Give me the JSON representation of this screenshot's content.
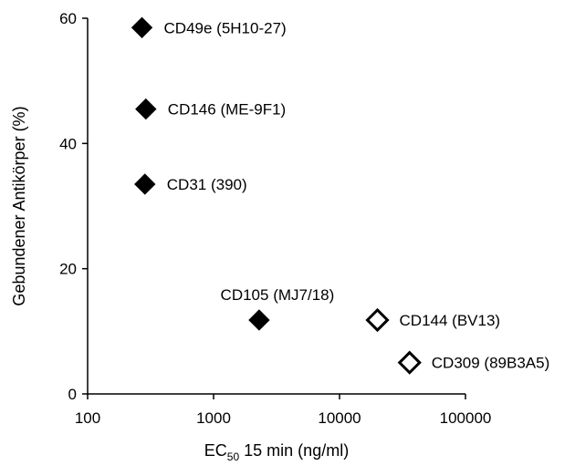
{
  "chart_data": {
    "type": "scatter",
    "title": "",
    "xlabel": {
      "prefix": "EC",
      "sub": "50",
      "suffix": " 15 min (ng/ml)"
    },
    "ylabel": "Gebundener Antikörper (%)",
    "x_scale": "log",
    "xlim": [
      100,
      100000
    ],
    "ylim": [
      0,
      60
    ],
    "x_ticks": [
      100,
      1000,
      10000,
      100000
    ],
    "x_tick_labels": [
      "100",
      "1000",
      "10000",
      "100000"
    ],
    "y_ticks": [
      0,
      20,
      40,
      60
    ],
    "y_tick_labels": [
      "0",
      "20",
      "40",
      "60"
    ],
    "grid": false,
    "marker": "diamond",
    "colors": {
      "filled": "#000000",
      "open_fill": "#ffffff",
      "open_stroke": "#000000"
    },
    "points": [
      {
        "label": "CD49e (5H10-27)",
        "x": 270,
        "y": 58.5,
        "filled": true,
        "label_pos": "right"
      },
      {
        "label": "CD146 (ME-9F1)",
        "x": 290,
        "y": 45.5,
        "filled": true,
        "label_pos": "right"
      },
      {
        "label": "CD31 (390)",
        "x": 285,
        "y": 33.5,
        "filled": true,
        "label_pos": "right"
      },
      {
        "label": "CD105 (MJ7/18)",
        "x": 2300,
        "y": 11.8,
        "filled": true,
        "label_pos": "above"
      },
      {
        "label": "CD144 (BV13)",
        "x": 20000,
        "y": 11.8,
        "filled": false,
        "label_pos": "right"
      },
      {
        "label": "CD309 (89B3A5)",
        "x": 36000,
        "y": 5.0,
        "filled": false,
        "label_pos": "right"
      }
    ]
  }
}
